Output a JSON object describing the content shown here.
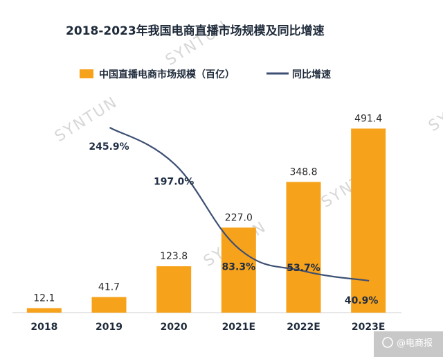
{
  "chart_data": {
    "type": "bar",
    "title": "2018-2023年我国电商直播市场规模及同比增速",
    "categories": [
      "2018",
      "2019",
      "2020",
      "2021E",
      "2022E",
      "2023E"
    ],
    "series": [
      {
        "name": "中国直播电商市场规模（百亿）",
        "type": "bar",
        "values": [
          12.1,
          41.7,
          123.8,
          227.0,
          348.8,
          491.4
        ],
        "labels": [
          "12.1",
          "41.7",
          "123.8",
          "227.0",
          "348.8",
          "491.4"
        ]
      },
      {
        "name": "同比增速",
        "type": "line",
        "values": [
          null,
          245.9,
          197.0,
          83.3,
          53.7,
          40.9
        ],
        "labels": [
          "",
          "245.9%",
          "197.0%",
          "83.3%",
          "53.7%",
          "40.9%"
        ]
      }
    ],
    "ylim": [
      0,
      520
    ],
    "legend_position": "top-left",
    "grid": false
  },
  "colors": {
    "bar": "#f7a21b",
    "line": "#3d4f73",
    "axis": "#cfcfcf"
  },
  "watermark": "SYNTUN",
  "footer": {
    "icon": "chat-bubble-icon",
    "text": "@电商报"
  }
}
